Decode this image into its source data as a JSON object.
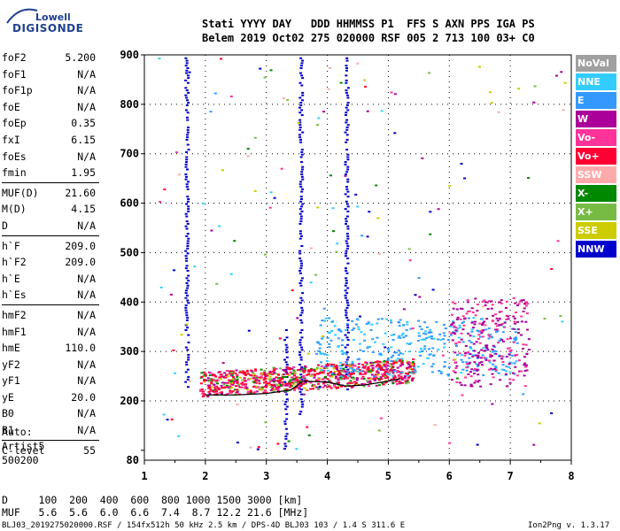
{
  "logo": {
    "line1": "Lowell",
    "line2": "DIGISONDE"
  },
  "header": {
    "labels": "Stati YYYY DAY   DDD HHMMSS P1  FFS S AXN PPS IGA PS",
    "values": "Belem 2019 Oct02 275 020000 RSF 005 2 713 100 03+ C0"
  },
  "params": [
    {
      "label": "foF2",
      "value": "5.200"
    },
    {
      "label": "foF1",
      "value": "N/A"
    },
    {
      "label": "foF1p",
      "value": "N/A"
    },
    {
      "label": "foE",
      "value": "N/A"
    },
    {
      "label": "foEp",
      "value": "0.35"
    },
    {
      "label": "fxI",
      "value": "6.15"
    },
    {
      "label": "foEs",
      "value": "N/A"
    },
    {
      "label": "fmin",
      "value": "1.95"
    },
    {
      "label": "MUF(D)",
      "value": "21.60"
    },
    {
      "label": "M(D)",
      "value": "4.15"
    },
    {
      "label": "D",
      "value": "N/A"
    },
    {
      "label": "h`F",
      "value": "209.0"
    },
    {
      "label": "h`F2",
      "value": "209.0"
    },
    {
      "label": "h`E",
      "value": "N/A"
    },
    {
      "label": "h`Es",
      "value": "N/A"
    },
    {
      "label": "hmF2",
      "value": "N/A"
    },
    {
      "label": "hmF1",
      "value": "N/A"
    },
    {
      "label": "hmE",
      "value": "110.0"
    },
    {
      "label": "yF2",
      "value": "N/A"
    },
    {
      "label": "yF1",
      "value": "N/A"
    },
    {
      "label": "yE",
      "value": "20.0"
    },
    {
      "label": "B0",
      "value": "N/A"
    },
    {
      "label": "B1",
      "value": "N/A"
    },
    {
      "label": "C-level",
      "value": "55"
    }
  ],
  "auto": {
    "line1": "Auto:",
    "line2": "Artist5",
    "line3": "500200"
  },
  "legend": [
    {
      "label": "NoVal",
      "color": "#a0a0a0"
    },
    {
      "label": "NNE",
      "color": "#33ccff"
    },
    {
      "label": "E",
      "color": "#3399ff"
    },
    {
      "label": "W",
      "color": "#aa0099"
    },
    {
      "label": "Vo-",
      "color": "#ff3399"
    },
    {
      "label": "Vo+",
      "color": "#ff0033"
    },
    {
      "label": "SSW",
      "color": "#ffaaaa"
    },
    {
      "label": "X-",
      "color": "#008800"
    },
    {
      "label": "X+",
      "color": "#77bb44"
    },
    {
      "label": "SSE",
      "color": "#cccc00"
    },
    {
      "label": "NNW",
      "color": "#0000cc"
    }
  ],
  "chart_data": {
    "type": "scatter",
    "xlim": [
      1,
      8
    ],
    "ylim": [
      80,
      900
    ],
    "x_ticks": [
      "1",
      "2",
      "3",
      "4",
      "5",
      "6",
      "7",
      "8"
    ],
    "y_ticks": [
      "900",
      "800",
      "700",
      "600",
      "500",
      "400",
      "300",
      "200",
      "80"
    ],
    "y_scale": "linear"
  },
  "footer": {
    "d_row": "D     100  200  400  600  800 1000 1500 3000 [km]",
    "muf_row": "MUF   5.6  5.6  6.0  6.6  7.4  8.7 12.2 21.6 [MHz]",
    "file_info": "BLJ03_2019275020000.RSF / 154fx512h 50 kHz 2.5 km / DPS-4D BLJ03 103 / 1.4 S 311.6 E",
    "version": "Ion2Png v. 1.3.17"
  }
}
